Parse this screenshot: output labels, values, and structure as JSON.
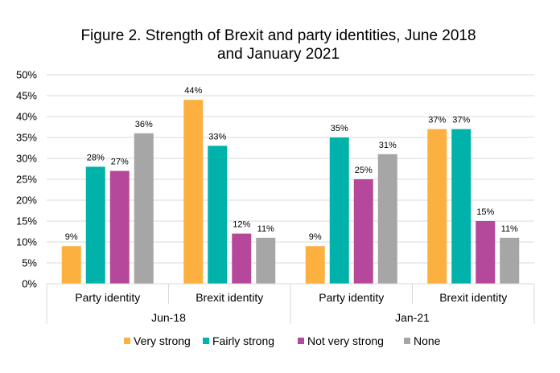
{
  "chart_data": {
    "type": "bar",
    "title_line1": "Figure 2. Strength of Brexit and party identities, June 2018",
    "title_line2": "and January 2021",
    "groups": [
      "Jun-18",
      "Jan-21"
    ],
    "categories": [
      "Party identity",
      "Brexit identity",
      "Party identity",
      "Brexit identity"
    ],
    "category_group": [
      0,
      0,
      1,
      1
    ],
    "series": [
      {
        "name": "Very strong",
        "color": "#FBB040",
        "values": [
          9,
          44,
          9,
          37
        ]
      },
      {
        "name": "Fairly strong",
        "color": "#00B2A9",
        "values": [
          28,
          33,
          35,
          37
        ]
      },
      {
        "name": "Not very strong",
        "color": "#B6489C",
        "values": [
          27,
          12,
          25,
          15
        ]
      },
      {
        "name": "None",
        "color": "#A6A6A6",
        "values": [
          36,
          11,
          31,
          11
        ]
      }
    ],
    "data_labels": [
      [
        "9%",
        "44%",
        "9%",
        "37%"
      ],
      [
        "28%",
        "33%",
        "35%",
        "37%"
      ],
      [
        "27%",
        "12%",
        "25%",
        "15%"
      ],
      [
        "36%",
        "11%",
        "31%",
        "11%"
      ]
    ],
    "y_ticks": [
      "0%",
      "5%",
      "10%",
      "15%",
      "20%",
      "25%",
      "30%",
      "35%",
      "40%",
      "45%",
      "50%"
    ],
    "ylim": [
      0,
      50
    ],
    "y_unit": "%",
    "grid": true,
    "legend_position": "bottom"
  }
}
